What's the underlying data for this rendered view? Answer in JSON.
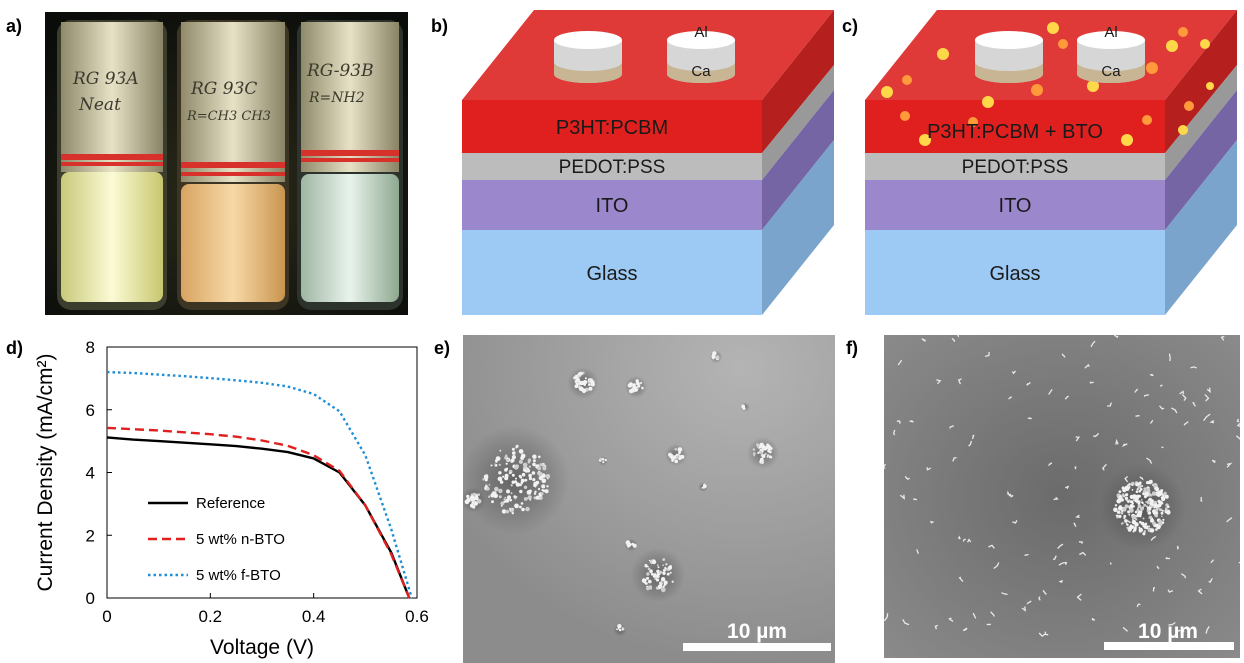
{
  "panels": {
    "a": "a)",
    "b": "b)",
    "c": "c)",
    "d": "d)",
    "e": "e)",
    "f": "f)"
  },
  "photo": {
    "vial_labels": [
      [
        "RG 93A",
        "Neat"
      ],
      [
        "RG 93C",
        "R=CH3 CH3"
      ],
      [
        "RG-93B",
        "R=NH2"
      ]
    ]
  },
  "device_b": {
    "top_electrode": "Al",
    "bottom_electrode": "Ca",
    "layers": [
      "P3HT:PCBM",
      "PEDOT:PSS",
      "ITO",
      "Glass"
    ]
  },
  "device_c": {
    "top_electrode": "Al",
    "bottom_electrode": "Ca",
    "layers": [
      "P3HT:PCBM + BTO",
      "PEDOT:PSS",
      "ITO",
      "Glass"
    ]
  },
  "colors": {
    "active": "#e62e2c",
    "active_top": "#df3a37",
    "active_side": "#b51f1d",
    "pedot": "#c0c0c0",
    "ito": "#9b87cc",
    "glass": "#9dcaf4",
    "particle_yellow": "#ffd84a",
    "particle_orange": "#ff9a3a",
    "reference": "#000000",
    "n_bto": "#e0201f",
    "f_bto": "#1e8fd6"
  },
  "chart_data": {
    "type": "line",
    "xlabel": "Voltage (V)",
    "ylabel": "Current Density (mA/cm²)",
    "xlim": [
      0,
      0.6
    ],
    "ylim": [
      0,
      8
    ],
    "xticks": [
      "0",
      "0.2",
      "0.4",
      "0.6"
    ],
    "yticks": [
      "0",
      "2",
      "4",
      "6",
      "8"
    ],
    "legend_position": "bottom-left",
    "series": [
      {
        "name": "Reference",
        "style": "solid",
        "x": [
          0,
          0.05,
          0.1,
          0.15,
          0.2,
          0.25,
          0.3,
          0.35,
          0.4,
          0.45,
          0.5,
          0.55,
          0.585
        ],
        "y": [
          5.12,
          5.05,
          5.0,
          4.95,
          4.9,
          4.84,
          4.76,
          4.65,
          4.45,
          4.0,
          2.95,
          1.45,
          0
        ]
      },
      {
        "name": "5 wt% n-BTO",
        "style": "dashed",
        "x": [
          0,
          0.05,
          0.1,
          0.15,
          0.2,
          0.25,
          0.3,
          0.35,
          0.4,
          0.45,
          0.5,
          0.55,
          0.585
        ],
        "y": [
          5.42,
          5.38,
          5.34,
          5.28,
          5.22,
          5.14,
          5.02,
          4.85,
          4.55,
          4.05,
          2.95,
          1.4,
          0
        ]
      },
      {
        "name": "5 wt% f-BTO",
        "style": "dotted",
        "x": [
          0,
          0.05,
          0.1,
          0.15,
          0.2,
          0.25,
          0.3,
          0.35,
          0.4,
          0.45,
          0.5,
          0.55,
          0.59
        ],
        "y": [
          7.2,
          7.17,
          7.12,
          7.07,
          7.01,
          6.94,
          6.86,
          6.74,
          6.5,
          5.95,
          4.55,
          2.2,
          0
        ]
      }
    ]
  },
  "sem_e": {
    "scalebar": "10 µm"
  },
  "sem_f": {
    "scalebar": "10 µm"
  }
}
